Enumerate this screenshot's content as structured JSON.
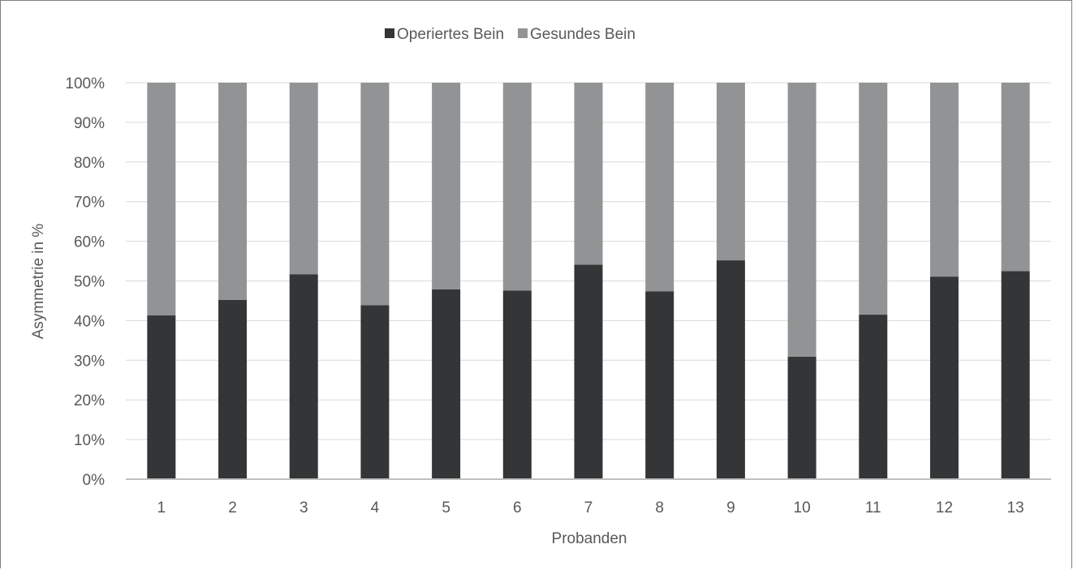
{
  "chart_data": {
    "type": "bar",
    "stacked": true,
    "percent_stacked": true,
    "categories": [
      "1",
      "2",
      "3",
      "4",
      "5",
      "6",
      "7",
      "8",
      "9",
      "10",
      "11",
      "12",
      "13"
    ],
    "series": [
      {
        "name": "Operiertes Bein",
        "color": "#333537",
        "values": [
          41.3,
          45.2,
          51.7,
          43.9,
          47.9,
          47.6,
          54.1,
          47.4,
          55.2,
          30.9,
          41.5,
          51.1,
          52.5
        ]
      },
      {
        "name": "Gesundes Bein",
        "color": "#919394",
        "values": [
          58.7,
          54.8,
          48.3,
          56.1,
          52.1,
          52.4,
          45.9,
          52.6,
          44.8,
          69.1,
          58.5,
          48.9,
          47.5
        ]
      }
    ],
    "xlabel": "Probanden",
    "ylabel": "Asymmetrie in %",
    "ylim": [
      0,
      100
    ],
    "yticks": [
      "0%",
      "10%",
      "20%",
      "30%",
      "40%",
      "50%",
      "60%",
      "70%",
      "80%",
      "90%",
      "100%"
    ],
    "grid": true,
    "legend_position": "top-center"
  }
}
